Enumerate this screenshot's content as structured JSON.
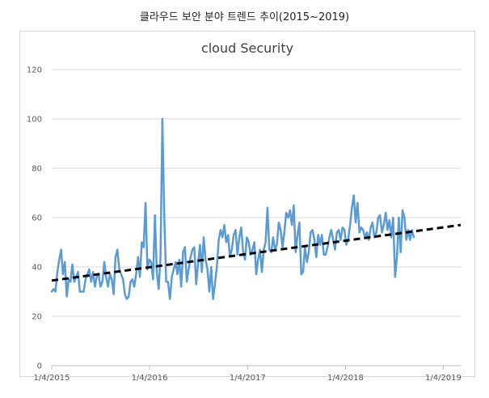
{
  "page_title": "클라우드 보안 분야 트렌드 추이(2015~2019)",
  "colors": {
    "series": "#5b9bd5",
    "trend": "#000000",
    "grid": "#d9d9d9",
    "text": "#595959"
  },
  "chart_data": {
    "type": "line",
    "title": "cloud Security",
    "xlabel": "",
    "ylabel": "",
    "ylim": [
      0,
      120
    ],
    "yticks": [
      0,
      20,
      40,
      60,
      80,
      100,
      120
    ],
    "xlim": [
      "2015-01-04",
      "2019-03-10"
    ],
    "xticks": [
      "1/4/2015",
      "1/4/2016",
      "1/4/2017",
      "1/4/2018",
      "1/4/2019"
    ],
    "grid": "horizontal",
    "legend": "none",
    "series": [
      {
        "style": "solid",
        "x_start": "2015-01-04",
        "x_step_days": 7,
        "values": [
          30,
          31,
          30,
          38,
          43,
          47,
          37,
          42,
          28,
          35,
          34,
          41,
          34,
          36,
          38,
          30,
          30,
          30,
          35,
          37,
          39,
          34,
          38,
          32,
          36,
          37,
          32,
          34,
          42,
          36,
          32,
          37,
          35,
          29,
          44,
          47,
          39,
          37,
          35,
          29,
          27,
          28,
          34,
          35,
          32,
          37,
          44,
          36,
          50,
          48,
          66,
          39,
          43,
          42,
          35,
          61,
          38,
          31,
          44,
          100,
          60,
          34,
          34,
          27,
          36,
          39,
          42,
          37,
          43,
          32,
          46,
          48,
          34,
          39,
          44,
          47,
          48,
          33,
          41,
          49,
          38,
          52,
          43,
          39,
          30,
          40,
          27,
          33,
          40,
          51,
          55,
          52,
          57,
          50,
          53,
          44,
          47,
          53,
          55,
          45,
          52,
          56,
          46,
          43,
          52,
          50,
          45,
          47,
          50,
          37,
          43,
          47,
          38,
          47,
          50,
          64,
          47,
          46,
          52,
          47,
          49,
          58,
          55,
          48,
          54,
          62,
          60,
          63,
          57,
          65,
          46,
          53,
          58,
          37,
          38,
          48,
          42,
          46,
          54,
          55,
          51,
          44,
          53,
          49,
          53,
          45,
          45,
          48,
          52,
          55,
          51,
          47,
          54,
          55,
          51,
          56,
          55,
          49,
          51,
          57,
          64,
          69,
          58,
          66,
          54,
          56,
          55,
          52,
          54,
          51,
          56,
          58,
          52,
          54,
          60,
          61,
          54,
          57,
          62,
          55,
          59,
          52,
          60,
          36,
          44,
          60,
          46,
          63,
          60,
          51,
          55,
          51,
          55,
          52
        ]
      },
      {
        "style": "dashed",
        "kind": "linear trend",
        "x": [
          "2015-01-04",
          "2019-03-10"
        ],
        "values": [
          34.5,
          57
        ]
      }
    ]
  }
}
